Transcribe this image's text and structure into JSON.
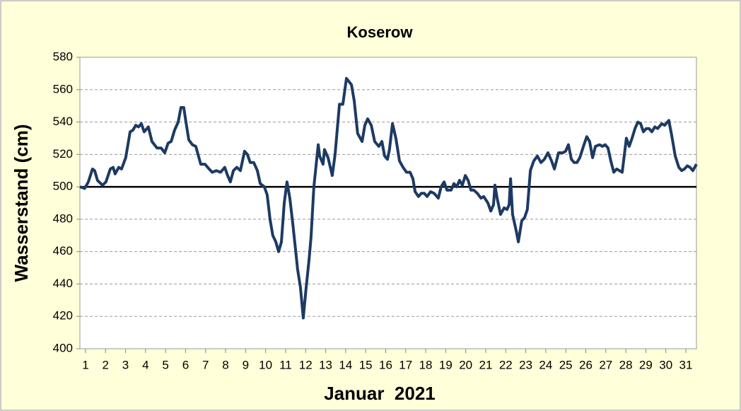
{
  "chart_data": {
    "type": "line",
    "title": "Koserow",
    "x_label": "Januar  2021",
    "y_label": "Wasserstand (cm)",
    "xlim": [
      0.72,
      31.53
    ],
    "xticks": [
      1,
      2,
      3,
      4,
      5,
      6,
      7,
      8,
      9,
      10,
      11,
      12,
      13,
      14,
      15,
      16,
      17,
      18,
      19,
      20,
      21,
      22,
      23,
      24,
      25,
      26,
      27,
      28,
      29,
      30,
      31
    ],
    "ylim": [
      400,
      580
    ],
    "yticks": [
      400,
      420,
      440,
      460,
      480,
      500,
      520,
      540,
      560,
      580
    ],
    "grid": true,
    "reference_line": 500,
    "x": [
      0.72,
      0.96,
      1.14,
      1.35,
      1.46,
      1.6,
      1.85,
      2.02,
      2.24,
      2.38,
      2.48,
      2.66,
      2.8,
      3.01,
      3.23,
      3.37,
      3.51,
      3.65,
      3.79,
      3.93,
      4.14,
      4.32,
      4.57,
      4.78,
      4.96,
      5.13,
      5.28,
      5.45,
      5.63,
      5.77,
      5.91,
      6.02,
      6.16,
      6.34,
      6.51,
      6.76,
      6.97,
      7.18,
      7.33,
      7.54,
      7.75,
      7.96,
      8.1,
      8.24,
      8.39,
      8.56,
      8.74,
      8.95,
      9.09,
      9.23,
      9.41,
      9.59,
      9.73,
      9.94,
      10.08,
      10.22,
      10.36,
      10.51,
      10.65,
      10.79,
      10.93,
      11.07,
      11.21,
      11.35,
      11.49,
      11.6,
      11.74,
      11.88,
      12.02,
      12.17,
      12.27,
      12.41,
      12.63,
      12.7,
      12.87,
      12.94,
      13.12,
      13.33,
      13.47,
      13.69,
      13.86,
      14.04,
      14.29,
      14.43,
      14.6,
      14.82,
      14.96,
      15.1,
      15.28,
      15.45,
      15.66,
      15.81,
      15.95,
      16.09,
      16.19,
      16.34,
      16.51,
      16.69,
      16.87,
      17.04,
      17.22,
      17.36,
      17.47,
      17.64,
      17.78,
      17.93,
      18.07,
      18.24,
      18.42,
      18.63,
      18.77,
      18.92,
      19.06,
      19.27,
      19.41,
      19.55,
      19.69,
      19.83,
      19.98,
      20.12,
      20.26,
      20.4,
      20.58,
      20.76,
      20.9,
      21.11,
      21.25,
      21.39,
      21.46,
      21.57,
      21.74,
      21.92,
      22.06,
      22.17,
      22.24,
      22.34,
      22.52,
      22.63,
      22.8,
      22.94,
      23.08,
      23.23,
      23.4,
      23.58,
      23.76,
      23.93,
      24.11,
      24.29,
      24.43,
      24.64,
      24.85,
      24.99,
      25.13,
      25.28,
      25.42,
      25.56,
      25.7,
      25.91,
      26.05,
      26.19,
      26.34,
      26.48,
      26.69,
      26.83,
      26.97,
      27.11,
      27.25,
      27.4,
      27.54,
      27.68,
      27.82,
      28.03,
      28.17,
      28.31,
      28.46,
      28.6,
      28.74,
      28.88,
      29.02,
      29.16,
      29.3,
      29.45,
      29.59,
      29.8,
      29.94,
      30.15,
      30.29,
      30.47,
      30.65,
      30.79,
      30.93,
      31.07,
      31.21,
      31.35,
      31.53
    ],
    "series": [
      {
        "name": "Wasserstand",
        "color": "#1c3a63",
        "values": [
          500,
          499,
          503,
          511,
          510,
          504,
          501,
          503,
          511,
          512,
          508,
          512,
          511,
          518,
          534,
          535,
          538,
          537,
          539,
          534,
          537,
          528,
          524,
          524,
          521,
          527,
          528,
          535,
          540,
          549,
          549,
          540,
          529,
          526,
          525,
          514,
          514,
          511,
          509,
          510,
          509,
          512,
          507,
          503,
          510,
          512,
          510,
          522,
          520,
          515,
          515,
          510,
          502,
          500,
          495,
          480,
          470,
          466,
          460,
          466,
          490,
          503,
          493,
          478,
          462,
          449,
          438,
          419,
          437,
          455,
          469,
          500,
          526,
          519,
          514,
          523,
          518,
          507,
          520,
          551,
          551,
          567,
          563,
          553,
          533,
          528,
          538,
          542,
          538,
          528,
          525,
          528,
          519,
          517,
          523,
          539,
          530,
          516,
          512,
          509,
          509,
          505,
          497,
          494,
          496,
          496,
          494,
          497,
          496,
          493,
          500,
          503,
          498,
          498,
          502,
          500,
          504,
          501,
          507,
          504,
          498,
          498,
          496,
          493,
          494,
          490,
          485,
          489,
          501,
          493,
          483,
          487,
          486,
          489,
          505,
          483,
          473,
          466,
          479,
          481,
          486,
          510,
          516,
          519,
          515,
          517,
          521,
          516,
          511,
          521,
          521,
          522,
          526,
          517,
          515,
          515,
          518,
          526,
          531,
          528,
          518,
          525,
          526,
          525,
          526,
          524,
          516,
          509,
          511,
          510,
          509,
          530,
          525,
          530,
          536,
          540,
          539,
          534,
          536,
          536,
          534,
          537,
          536,
          539,
          538,
          541,
          532,
          519,
          512,
          510,
          511,
          513,
          512,
          510,
          514
        ]
      }
    ]
  }
}
